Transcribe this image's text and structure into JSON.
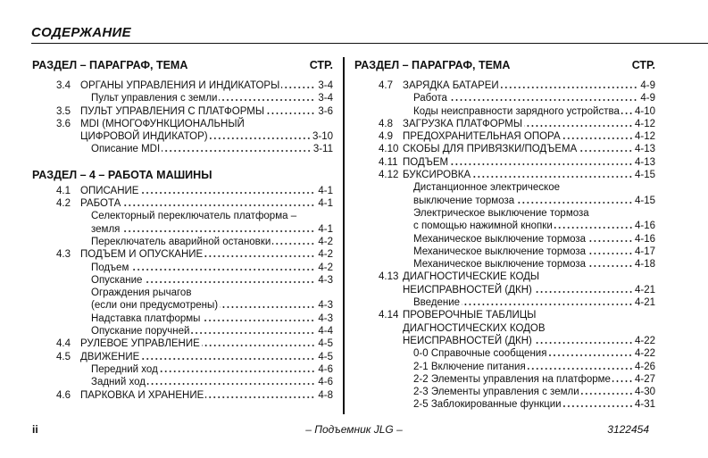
{
  "title": "СОДЕРЖАНИЕ",
  "columns": [
    {
      "header": {
        "title": "РАЗДЕЛ – ПАРАГРАФ, ТЕМА",
        "page_label": "СТР."
      },
      "blocks": [
        {
          "heading": "",
          "rows": [
            {
              "type": "main",
              "num": "3.4",
              "text": "ОРГАНЫ УПРАВЛЕНИЯ И ИНДИКАТОРЫ",
              "page": "3-4"
            },
            {
              "type": "sub",
              "num": "",
              "text": "Пульт управления с земли",
              "page": "3-4"
            },
            {
              "type": "main",
              "num": "3.5",
              "text": "ПУЛЬТ УПРАВЛЕНИЯ С ПЛАТФОРМЫ",
              "page": "3-6"
            },
            {
              "type": "main",
              "num": "3.6",
              "text": "MDI (МНОГОФУНКЦИОНАЛЬНЫЙ",
              "page": ""
            },
            {
              "type": "main",
              "num": "",
              "text": "ЦИФРОВОЙ ИНДИКАТОР)",
              "page": "3-10"
            },
            {
              "type": "sub",
              "num": "",
              "text": "Описание MDI",
              "page": "3-11"
            }
          ]
        },
        {
          "heading": "РАЗДЕЛ – 4 – РАБОТА МАШИНЫ",
          "rows": [
            {
              "type": "main",
              "num": "4.1",
              "text": "ОПИСАНИЕ",
              "page": "4-1"
            },
            {
              "type": "main",
              "num": "4.2",
              "text": "РАБОТА",
              "page": "4-1"
            },
            {
              "type": "sub",
              "num": "",
              "text": "Селекторный переключатель платформа –",
              "page": ""
            },
            {
              "type": "sub",
              "num": "",
              "text": "земля",
              "page": "4-1"
            },
            {
              "type": "sub",
              "num": "",
              "text": "Переключатель аварийной остановки",
              "page": "4-2"
            },
            {
              "type": "main",
              "num": "4.3",
              "text": "ПОДЪЕМ И ОПУСКАНИЕ",
              "page": "4-2"
            },
            {
              "type": "sub",
              "num": "",
              "text": "Подъем",
              "page": "4-2"
            },
            {
              "type": "sub",
              "num": "",
              "text": "Опускание",
              "page": "4-3"
            },
            {
              "type": "sub",
              "num": "",
              "text": "Ограждения рычагов",
              "page": ""
            },
            {
              "type": "sub",
              "num": "",
              "text": "(если они предусмотрены)",
              "page": "4-3"
            },
            {
              "type": "sub",
              "num": "",
              "text": "Надставка платформы",
              "page": "4-3"
            },
            {
              "type": "sub",
              "num": "",
              "text": "Опускание поручней",
              "page": "4-4"
            },
            {
              "type": "main",
              "num": "4.4",
              "text": "РУЛЕВОЕ УПРАВЛЕНИЕ",
              "page": "4-5"
            },
            {
              "type": "main",
              "num": "4.5",
              "text": "ДВИЖЕНИЕ",
              "page": "4-5"
            },
            {
              "type": "sub",
              "num": "",
              "text": "Передний ход",
              "page": "4-6"
            },
            {
              "type": "sub",
              "num": "",
              "text": "Задний ход",
              "page": "4-6"
            },
            {
              "type": "main",
              "num": "4.6",
              "text": "ПАРКОВКА И ХРАНЕНИЕ",
              "page": "4-8"
            }
          ]
        }
      ]
    },
    {
      "header": {
        "title": "РАЗДЕЛ – ПАРАГРАФ, ТЕМА",
        "page_label": "СТР."
      },
      "blocks": [
        {
          "heading": "",
          "rows": [
            {
              "type": "main",
              "num": "4.7",
              "text": "ЗАРЯДКА БАТАРЕИ",
              "page": "4-9"
            },
            {
              "type": "sub",
              "num": "",
              "text": "Работа",
              "page": "4-9"
            },
            {
              "type": "sub",
              "num": "",
              "text": "Коды неисправности зарядного устройства",
              "page": "4-10"
            },
            {
              "type": "main",
              "num": "4.8",
              "text": "ЗАГРУЗКА ПЛАТФОРМЫ",
              "page": "4-12"
            },
            {
              "type": "main",
              "num": "4.9",
              "text": "ПРЕДОХРАНИТЕЛЬНАЯ ОПОРА",
              "page": "4-12"
            },
            {
              "type": "main",
              "num": "4.10",
              "text": "СКОБЫ ДЛЯ ПРИВЯЗКИ/ПОДЪЕМА",
              "page": "4-13"
            },
            {
              "type": "main",
              "num": "4.11",
              "text": "ПОДЪЕМ",
              "page": "4-13"
            },
            {
              "type": "main",
              "num": "4.12",
              "text": "БУКСИРОВКА",
              "page": "4-15"
            },
            {
              "type": "sub",
              "num": "",
              "text": "Дистанционное электрическое",
              "page": ""
            },
            {
              "type": "sub",
              "num": "",
              "text": "выключение тормоза",
              "page": "4-15"
            },
            {
              "type": "sub",
              "num": "",
              "text": "Электрическое выключение тормоза",
              "page": ""
            },
            {
              "type": "sub",
              "num": "",
              "text": "с помощью нажимной кнопки",
              "page": "4-16"
            },
            {
              "type": "sub",
              "num": "",
              "text": "Механическое выключение тормоза",
              "page": "4-16"
            },
            {
              "type": "sub",
              "num": "",
              "text": "Механическое выключение тормоза",
              "page": "4-17"
            },
            {
              "type": "sub",
              "num": "",
              "text": "Механическое выключение тормоза",
              "page": "4-18"
            },
            {
              "type": "main",
              "num": "4.13",
              "text": "ДИАГНОСТИЧЕСКИЕ КОДЫ",
              "page": ""
            },
            {
              "type": "main",
              "num": "",
              "text": "НЕИСПРАВНОСТЕЙ (ДКН)",
              "page": "4-21"
            },
            {
              "type": "sub",
              "num": "",
              "text": "Введение",
              "page": "4-21"
            },
            {
              "type": "main",
              "num": "4.14",
              "text": "ПРОВЕРОЧНЫЕ ТАБЛИЦЫ",
              "page": ""
            },
            {
              "type": "main",
              "num": "",
              "text": "ДИАГНОСТИЧЕСКИХ КОДОВ",
              "page": ""
            },
            {
              "type": "main",
              "num": "",
              "text": "НЕИСПРАВНОСТЕЙ (ДКН)",
              "page": "4-22"
            },
            {
              "type": "sub",
              "num": "",
              "text": "0-0 Справочные сообщения",
              "page": "4-22"
            },
            {
              "type": "sub",
              "num": "",
              "text": "2-1 Включение питания",
              "page": "4-26"
            },
            {
              "type": "sub",
              "num": "",
              "text": "2-2 Элементы управления на платформе",
              "page": "4-27"
            },
            {
              "type": "sub",
              "num": "",
              "text": "2-3 Элементы управления с земли",
              "page": "4-30"
            },
            {
              "type": "sub",
              "num": "",
              "text": "2-5 Заблокированные функции",
              "page": "4-31"
            }
          ]
        }
      ]
    }
  ],
  "footer": {
    "page_number": "ii",
    "center": "– Подъемник JLG –",
    "doc_number": "3122454"
  }
}
